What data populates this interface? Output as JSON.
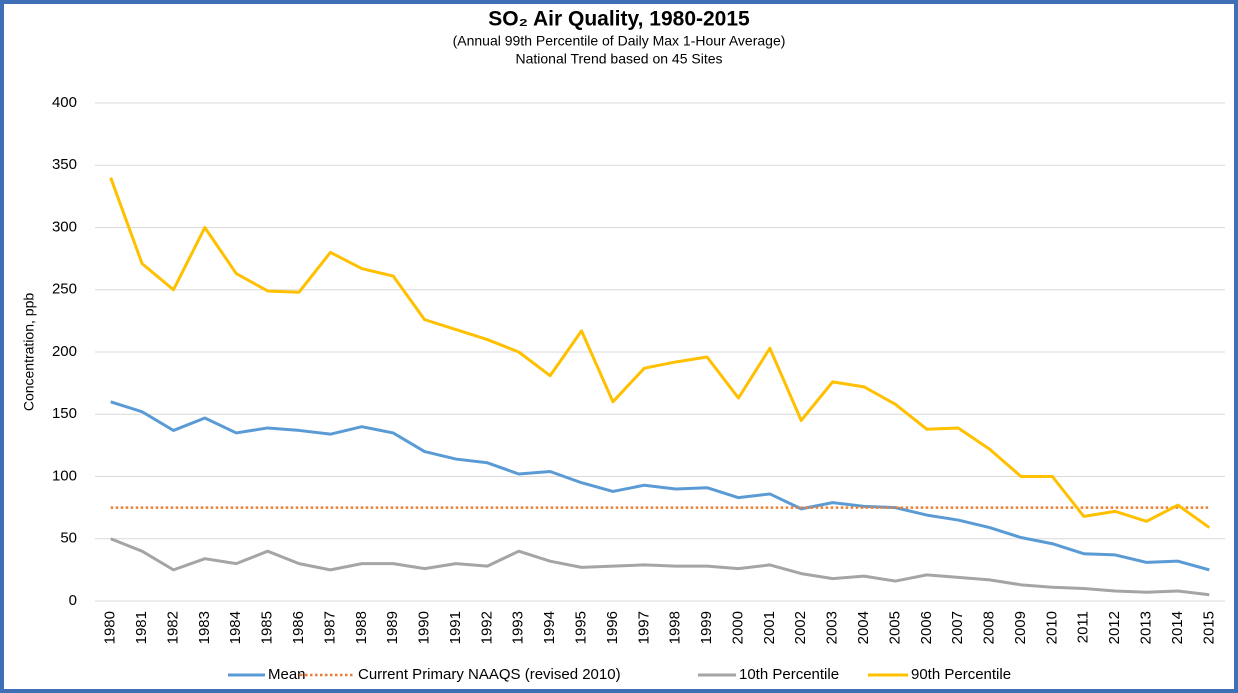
{
  "chart_data": {
    "type": "line",
    "title": "SO₂ Air Quality, 1980-2015",
    "subtitle": [
      "(Annual 99th Percentile of Daily Max 1-Hour Average)",
      "National Trend based on 45 Sites"
    ],
    "y_label": "Concentration, ppb",
    "categories": [
      "1980",
      "1981",
      "1982",
      "1983",
      "1984",
      "1985",
      "1986",
      "1987",
      "1988",
      "1989",
      "1990",
      "1991",
      "1992",
      "1993",
      "1994",
      "1995",
      "1996",
      "1997",
      "1998",
      "1999",
      "2000",
      "2001",
      "2002",
      "2003",
      "2004",
      "2005",
      "2006",
      "2007",
      "2008",
      "2009",
      "2010",
      "2011",
      "2012",
      "2013",
      "2014",
      "2015"
    ],
    "series": [
      {
        "name": "Mean",
        "color": "#5b9bd5",
        "style": "solid",
        "values": [
          160,
          152,
          137,
          147,
          135,
          139,
          137,
          134,
          140,
          135,
          120,
          114,
          111,
          102,
          104,
          95,
          88,
          93,
          90,
          91,
          83,
          86,
          74,
          79,
          76,
          75,
          69,
          65,
          59,
          51,
          46,
          38,
          37,
          31,
          32,
          25
        ]
      },
      {
        "name": "Current Primary NAAQS (revised 2010)",
        "color": "#ed7d31",
        "style": "dotted",
        "values": [
          75,
          75,
          75,
          75,
          75,
          75,
          75,
          75,
          75,
          75,
          75,
          75,
          75,
          75,
          75,
          75,
          75,
          75,
          75,
          75,
          75,
          75,
          75,
          75,
          75,
          75,
          75,
          75,
          75,
          75,
          75,
          75,
          75,
          75,
          75,
          75
        ]
      },
      {
        "name": "10th Percentile",
        "color": "#a5a5a5",
        "style": "solid",
        "values": [
          50,
          40,
          25,
          34,
          30,
          40,
          30,
          25,
          30,
          30,
          26,
          30,
          28,
          40,
          32,
          27,
          28,
          29,
          28,
          28,
          26,
          29,
          22,
          18,
          20,
          16,
          21,
          19,
          17,
          13,
          11,
          10,
          8,
          7,
          8,
          5
        ]
      },
      {
        "name": "90th Percentile",
        "color": "#ffc000",
        "style": "solid",
        "values": [
          340,
          271,
          250,
          300,
          263,
          249,
          248,
          280,
          267,
          261,
          226,
          218,
          210,
          200,
          181,
          217,
          160,
          187,
          192,
          196,
          163,
          203,
          145,
          176,
          172,
          158,
          138,
          139,
          122,
          100,
          100,
          68,
          72,
          64,
          77,
          59
        ]
      }
    ],
    "ylim": [
      0,
      400
    ],
    "yticks": [
      0,
      50,
      100,
      150,
      200,
      250,
      300,
      350,
      400
    ],
    "grid": true,
    "legend": "bottom"
  }
}
